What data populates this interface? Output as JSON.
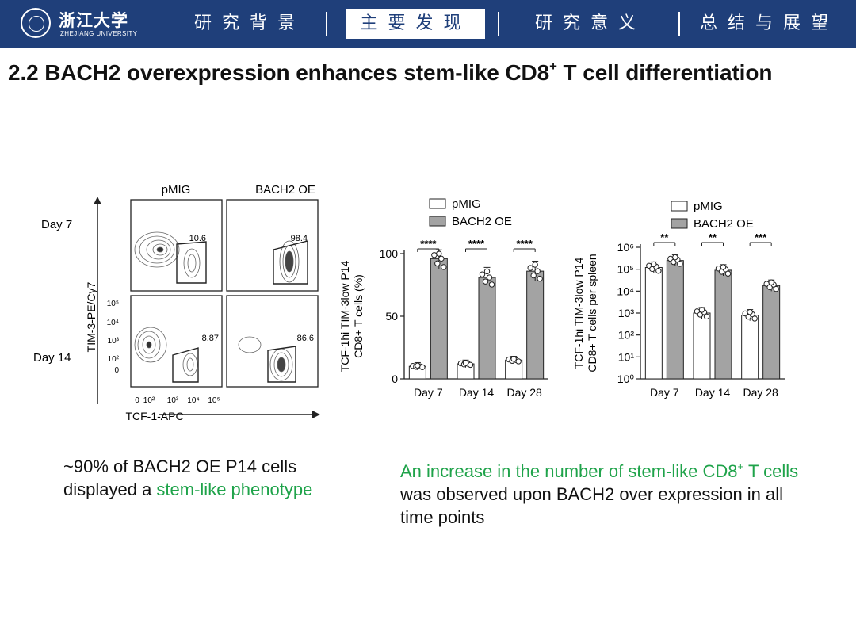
{
  "header": {
    "logo_cn": "浙江大学",
    "logo_en": "ZHEJIANG UNIVERSITY",
    "nav": [
      "研究背景",
      "主要发现",
      "研究意义",
      "总结与展望"
    ],
    "active_index": 1,
    "colors": {
      "bar": "#1f3f7a",
      "accent_green": "#1fa34a"
    }
  },
  "slide_title": {
    "main": "2.2 BACH2 overexpression enhances stem-like CD8",
    "sup": "+",
    "rest": " T cell differentiation"
  },
  "flow": {
    "col_labels": [
      "pMIG",
      "BACH2 OE"
    ],
    "row_labels": [
      "Day 7",
      "Day 14"
    ],
    "gate_values": [
      "10.6",
      "98.4",
      "8.87",
      "86.6"
    ],
    "y_label": "TIM-3-PE/Cy7",
    "x_label": "TCF-1-APC",
    "y_ticks": [
      "10⁵",
      "10⁴",
      "10³",
      "10²",
      "0"
    ],
    "x_ticks": [
      "0",
      "10²",
      "10³",
      "10⁴",
      "10⁵"
    ]
  },
  "chart_data": [
    {
      "type": "bar",
      "title": "",
      "legend": [
        "pMIG",
        "BACH2 OE"
      ],
      "ylabel": "TCF-1hi TIM-3low P14 CD8+ T cells (%)",
      "categories": [
        "Day 7",
        "Day 14",
        "Day 28"
      ],
      "series": [
        {
          "name": "pMIG",
          "values": [
            10,
            12,
            15
          ]
        },
        {
          "name": "BACH2 OE",
          "values": [
            96,
            81,
            86
          ]
        }
      ],
      "significance": [
        "****",
        "****",
        "****"
      ],
      "ylim": [
        0,
        100
      ],
      "yticks": [
        0,
        50,
        100
      ]
    },
    {
      "type": "bar",
      "title": "",
      "legend": [
        "pMIG",
        "BACH2 OE"
      ],
      "ylabel": "TCF-1hi TIM-3low P14 CD8+ T cells per spleen",
      "yscale": "log",
      "categories": [
        "Day 7",
        "Day 14",
        "Day 28"
      ],
      "series": [
        {
          "name": "pMIG",
          "values": [
            120000,
            1000,
            800
          ]
        },
        {
          "name": "BACH2 OE",
          "values": [
            250000,
            90000,
            18000
          ]
        }
      ],
      "significance": [
        "**",
        "**",
        "***"
      ],
      "ylim": [
        1,
        1000000
      ],
      "yticks": [
        1,
        10,
        100,
        1000,
        10000,
        100000,
        1000000
      ],
      "ytick_labels": [
        "10⁰",
        "10¹",
        "10²",
        "10³",
        "10⁴",
        "10⁵",
        "10⁶"
      ]
    }
  ],
  "captions": {
    "left_prefix": "~90% of BACH2 OE P14 cells displayed a ",
    "left_green": "stem-like phenotype",
    "right_green": "An increase in the number of stem-like CD8",
    "right_green_sup": "+",
    "right_green_tail": " T cells",
    "right_rest": " was observed upon BACH2 over expression in all time points"
  }
}
